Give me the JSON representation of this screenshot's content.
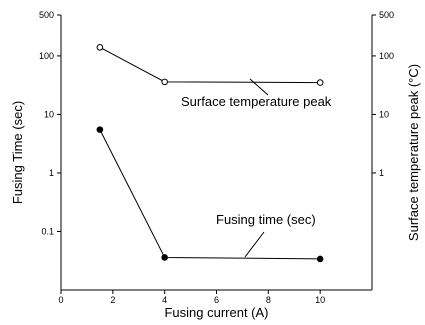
{
  "chart_data": {
    "type": "line",
    "title": "",
    "xlabel": "Fusing current (A)",
    "ylabel_left": "Fusing Time (sec)",
    "ylabel_right": "Surface temperature peak (°C)",
    "x_ticks": [
      "0",
      "2",
      "4",
      "6",
      "8",
      "10"
    ],
    "x_tick_values": [
      0,
      2,
      4,
      6,
      8,
      10
    ],
    "xlim": [
      0,
      12
    ],
    "y_left_ticks": [
      "0.1",
      "1",
      "10",
      "100",
      "500"
    ],
    "y_left_tick_values": [
      0.1,
      1,
      10,
      100,
      500
    ],
    "y_right_ticks": [
      "1",
      "10",
      "100",
      "500"
    ],
    "y_right_tick_values": [
      1,
      10,
      100,
      500
    ],
    "y_scale": "log",
    "ylim": [
      0.01,
      500
    ],
    "series": [
      {
        "name": "Surface temperature peak",
        "marker": "open-circle",
        "x": [
          1.5,
          4,
          10
        ],
        "y": [
          140,
          36,
          35
        ]
      },
      {
        "name": "Fusing time (sec)",
        "marker": "filled-circle",
        "x": [
          1.5,
          4,
          10
        ],
        "y": [
          5.5,
          0.036,
          0.034
        ]
      }
    ],
    "annotations": [
      {
        "text": "Surface temperature peak",
        "series_index": 0
      },
      {
        "text": "Fusing time (sec)",
        "series_index": 1
      }
    ],
    "grid": false,
    "legend": "none"
  }
}
